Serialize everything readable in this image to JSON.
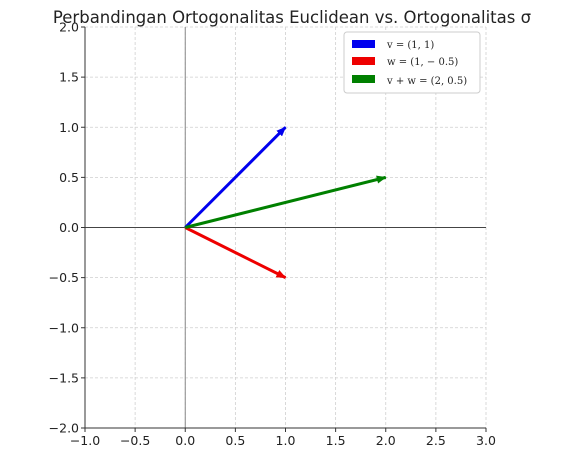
{
  "chart_data": {
    "type": "quiver",
    "title": "Perbandingan Ortogonalitas Euclidean vs. Ortogonalitas σ",
    "xlabel": "",
    "ylabel": "",
    "xlim": [
      -1.0,
      3.0
    ],
    "ylim": [
      -2.0,
      2.0
    ],
    "x_ticks": [
      "-1.0",
      "-0.5",
      "0.0",
      "0.5",
      "1.0",
      "1.5",
      "2.0",
      "2.5",
      "3.0"
    ],
    "x_tick_values": [
      -1.0,
      -0.5,
      0.0,
      0.5,
      1.0,
      1.5,
      2.0,
      2.5,
      3.0
    ],
    "y_ticks": [
      "2.0",
      "1.5",
      "1.0",
      "0.5",
      "0.0",
      "-0.5",
      "-1.0",
      "-1.5",
      "-2.0"
    ],
    "y_tick_values": [
      2.0,
      1.5,
      1.0,
      0.5,
      0.0,
      -0.5,
      -1.0,
      -1.5,
      -2.0
    ],
    "grid": true,
    "legend_position": "top-right",
    "series": [
      {
        "name": "v = (1, 1)",
        "origin": [
          0,
          0
        ],
        "vector": [
          1,
          1
        ],
        "color": "#0000ee"
      },
      {
        "name": "w = (1, − 0.5)",
        "origin": [
          0,
          0
        ],
        "vector": [
          1,
          -0.5
        ],
        "color": "#ee0000"
      },
      {
        "name": "v + w = (2, 0.5)",
        "origin": [
          0,
          0
        ],
        "vector": [
          2,
          0.5
        ],
        "color": "#008000"
      }
    ]
  }
}
